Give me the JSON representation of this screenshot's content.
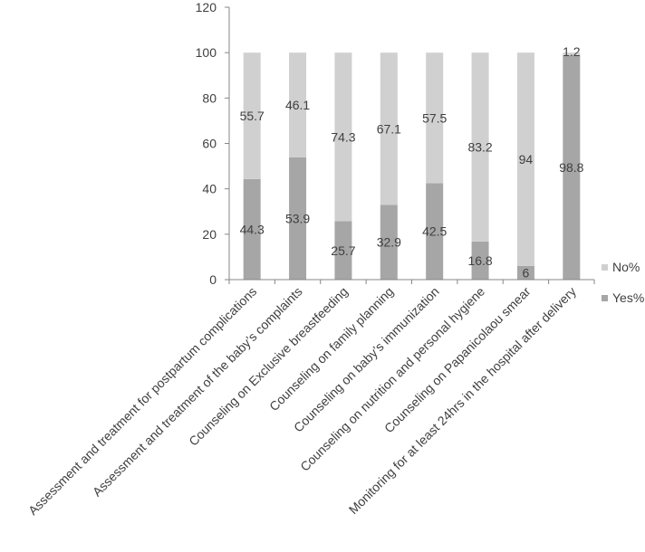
{
  "chart_data": {
    "type": "bar",
    "stacked": true,
    "title": "",
    "xlabel": "",
    "ylabel": "",
    "ylim": [
      0,
      120
    ],
    "yticks": [
      0,
      20,
      40,
      60,
      80,
      100,
      120
    ],
    "grid": false,
    "legend_position": "right",
    "categories": [
      "Assessment and treatment  for postpartum complications",
      "Assessment and treatment of the baby’s complaints",
      "Counseling on Exclusive breastfeeding",
      "Counseling on family planning",
      "Counseling on baby’s immunization",
      "Counseling on nutrition and personal hygiene",
      "Counseling on Papanicolaou smear",
      "Monitoring  for at least 24hrs in the hospital after delivery"
    ],
    "series": [
      {
        "name": "Yes%",
        "color": "#a6a6a6",
        "values": [
          44.3,
          53.9,
          25.7,
          32.9,
          42.5,
          16.8,
          6,
          98.8
        ],
        "labels": [
          "44.3",
          "53.9",
          "25.7",
          "32.9",
          "42.5",
          "16.8",
          "6",
          "98.8"
        ]
      },
      {
        "name": "No%",
        "color": "#d0d0d0",
        "values": [
          55.7,
          46.1,
          74.3,
          67.1,
          57.5,
          83.2,
          94,
          1.2
        ],
        "labels": [
          "55.7",
          "46.1",
          "74.3",
          "67.1",
          "57.5",
          "83.2",
          "94",
          "1.2"
        ]
      }
    ],
    "legend": [
      {
        "name": "No%",
        "color": "#d0d0d0"
      },
      {
        "name": "Yes%",
        "color": "#a6a6a6"
      }
    ]
  }
}
